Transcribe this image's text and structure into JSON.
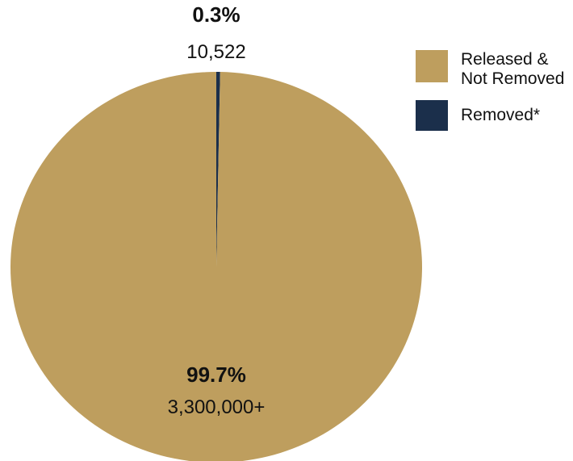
{
  "chart_data": {
    "type": "pie",
    "slices": [
      {
        "label": "Released & Not Removed",
        "value": 99.7,
        "percent_label": "99.7%",
        "count_label": "3,300,000+",
        "color": "#BE9E5E"
      },
      {
        "label": "Removed*",
        "value": 0.3,
        "percent_label": "0.3%",
        "count_label": "10,522",
        "color": "#1B2F4B"
      }
    ],
    "legend": {
      "placement": "top-right",
      "items": [
        {
          "label": "Released &\nNot Removed",
          "color": "#BE9E5E"
        },
        {
          "label": "Removed*",
          "color": "#1B2F4B"
        }
      ]
    }
  }
}
